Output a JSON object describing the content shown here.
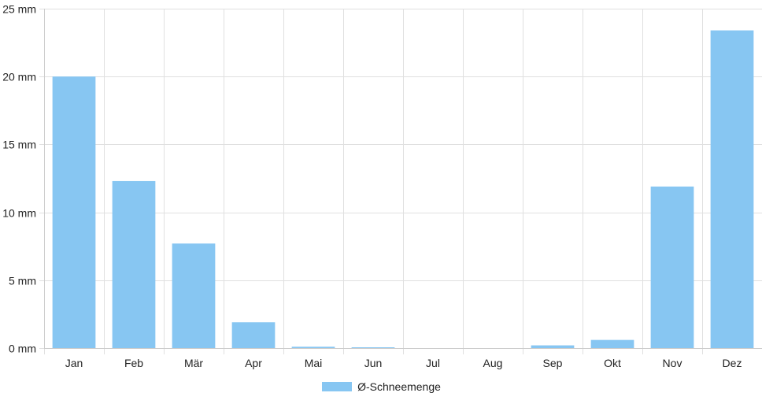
{
  "chart_data": {
    "type": "bar",
    "categories": [
      "Jan",
      "Feb",
      "Mär",
      "Apr",
      "Mai",
      "Jun",
      "Jul",
      "Aug",
      "Sep",
      "Okt",
      "Nov",
      "Dez"
    ],
    "series": [
      {
        "name": "Ø-Schneemenge",
        "values": [
          20.0,
          12.3,
          7.7,
          1.9,
          0.1,
          0.05,
          0,
          0,
          0.2,
          0.6,
          11.9,
          23.4
        ],
        "color": "#87c6f2"
      }
    ],
    "y_ticks": [
      "0 mm",
      "5 mm",
      "10 mm",
      "15 mm",
      "20 mm",
      "25 mm"
    ],
    "ylim": [
      0,
      25
    ],
    "ystep": 5,
    "grid": true,
    "legend_position": "bottom",
    "colors": {
      "grid": "#e0e0e0",
      "axis": "#cccccc"
    }
  }
}
